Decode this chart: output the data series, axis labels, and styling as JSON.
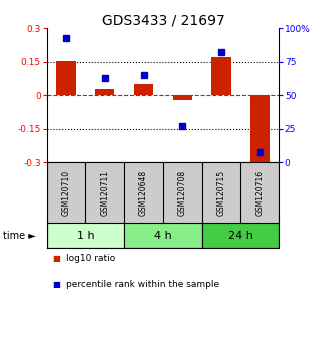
{
  "title": "GDS3433 / 21697",
  "samples": [
    "GSM120710",
    "GSM120711",
    "GSM120648",
    "GSM120708",
    "GSM120715",
    "GSM120716"
  ],
  "log10_ratio": [
    0.153,
    0.03,
    0.052,
    -0.022,
    0.17,
    -0.31
  ],
  "percentile_rank": [
    93,
    63,
    65,
    27,
    82,
    8
  ],
  "bar_color": "#cc2200",
  "point_color": "#0000cc",
  "ylim_left": [
    -0.3,
    0.3
  ],
  "ylim_right": [
    0,
    100
  ],
  "yticks_left": [
    -0.3,
    -0.15,
    0,
    0.15,
    0.3
  ],
  "yticks_right": [
    0,
    25,
    50,
    75,
    100
  ],
  "ytick_labels_left": [
    "-0.3",
    "-0.15",
    "0",
    "0.15",
    "0.3"
  ],
  "ytick_labels_right": [
    "0",
    "25",
    "50",
    "75",
    "100%"
  ],
  "hlines": [
    -0.15,
    0,
    0.15
  ],
  "hline_styles": [
    "dotted",
    "dashed",
    "dotted"
  ],
  "hline_colors": [
    "black",
    "red",
    "black"
  ],
  "time_groups": [
    {
      "label": "1 h",
      "samples": [
        0,
        1
      ],
      "color": "#ccffcc"
    },
    {
      "label": "4 h",
      "samples": [
        2,
        3
      ],
      "color": "#88ee88"
    },
    {
      "label": "24 h",
      "samples": [
        4,
        5
      ],
      "color": "#44cc44"
    }
  ],
  "legend_items": [
    {
      "label": "log10 ratio",
      "color": "#cc2200"
    },
    {
      "label": "percentile rank within the sample",
      "color": "#0000cc"
    }
  ],
  "bg_color": "#ffffff",
  "sample_box_color": "#cccccc",
  "title_fontsize": 10,
  "tick_fontsize": 6.5,
  "sample_fontsize": 5.5,
  "time_fontsize": 8,
  "legend_fontsize": 6.5,
  "time_label": "time"
}
